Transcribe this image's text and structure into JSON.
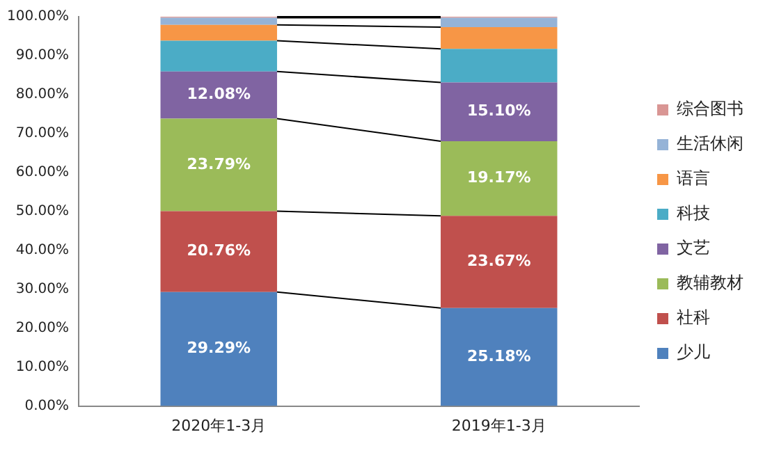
{
  "chart_data": {
    "type": "bar",
    "stacked": true,
    "categories": [
      "2020年1-3月",
      "2019年1-3月"
    ],
    "series": [
      {
        "name": "少儿",
        "color": "#4f81bd",
        "values": [
          29.29,
          25.18
        ],
        "value_labels": [
          "29.29%",
          "25.18%"
        ]
      },
      {
        "name": "社科",
        "color": "#c0504d",
        "values": [
          20.76,
          23.67
        ],
        "value_labels": [
          "20.76%",
          "23.67%"
        ]
      },
      {
        "name": "教辅教材",
        "color": "#9bbb59",
        "values": [
          23.79,
          19.17
        ],
        "value_labels": [
          "23.79%",
          "19.17%"
        ]
      },
      {
        "name": "文艺",
        "color": "#8064a2",
        "values": [
          12.08,
          15.1
        ],
        "value_labels": [
          "12.08%",
          "15.10%"
        ]
      },
      {
        "name": "科技",
        "color": "#4bacc6",
        "values": [
          7.9,
          8.6
        ]
      },
      {
        "name": "语言",
        "color": "#f79646",
        "values": [
          4.1,
          5.6
        ]
      },
      {
        "name": "生活休闲",
        "color": "#95b3d7",
        "values": [
          1.8,
          2.4
        ]
      },
      {
        "name": "综合图书",
        "color": "#d99694",
        "values": [
          0.3,
          0.3
        ]
      }
    ],
    "ylim": [
      0,
      100
    ],
    "yticks": [
      {
        "value": 0,
        "label": "0.00%"
      },
      {
        "value": 10,
        "label": "10.00%"
      },
      {
        "value": 20,
        "label": "20.00%"
      },
      {
        "value": 30,
        "label": "30.00%"
      },
      {
        "value": 40,
        "label": "40.00%"
      },
      {
        "value": 50,
        "label": "50.00%"
      },
      {
        "value": 60,
        "label": "60.00%"
      },
      {
        "value": 70,
        "label": "70.00%"
      },
      {
        "value": 80,
        "label": "80.00%"
      },
      {
        "value": 90,
        "label": "90.00%"
      },
      {
        "value": 100,
        "label": "100.00%"
      }
    ],
    "grid": false,
    "legend": "right"
  }
}
